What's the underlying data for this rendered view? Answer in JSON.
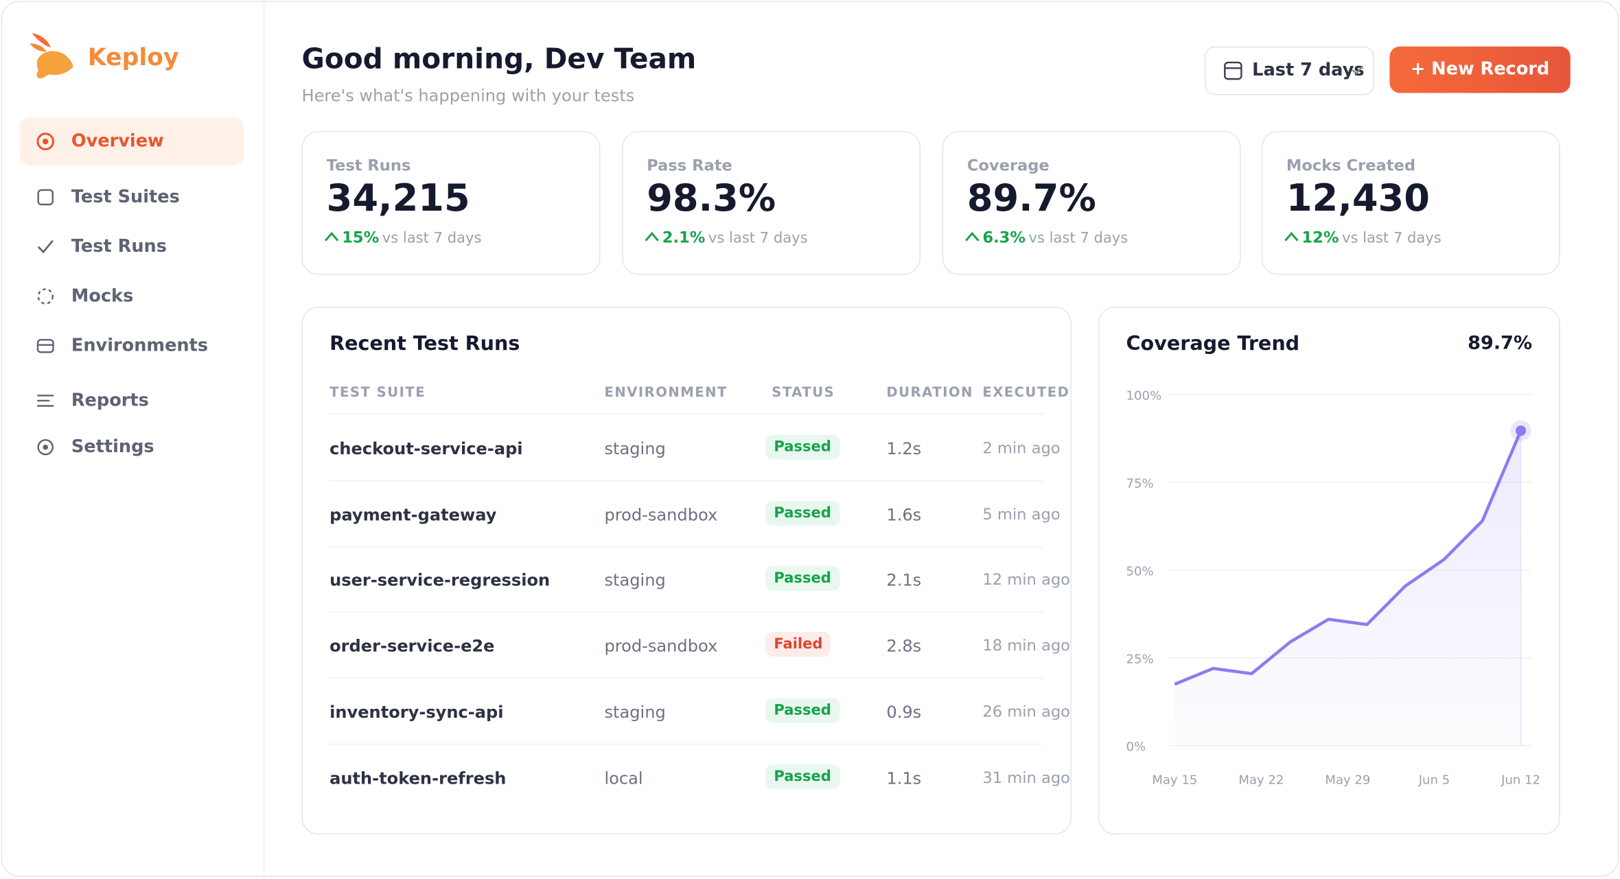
{
  "sidebar": {
    "brand": "Keploy",
    "nav": [
      "Overview",
      "Test Suites",
      "Test Runs",
      "Mocks",
      "Environments",
      "Reports",
      "Settings"
    ],
    "active": 0
  },
  "header": {
    "title": "Good morning, Dev Team",
    "subtitle": "Here's what's happening with your tests",
    "range": "Last 7 days",
    "button": "+ New Record"
  },
  "stats": [
    {
      "label": "Test Runs",
      "value": "34,215",
      "change": "15%",
      "note": "vs last 7 days"
    },
    {
      "label": "Pass Rate",
      "value": "98.3%",
      "change": "2.1%",
      "note": "vs last 7 days"
    },
    {
      "label": "Coverage",
      "value": "89.7%",
      "change": "6.3%",
      "note": "vs last 7 days"
    },
    {
      "label": "Mocks Created",
      "value": "12,430",
      "change": "12%",
      "note": "vs last 7 days"
    }
  ],
  "table": {
    "title": "Recent Test Runs",
    "columns": [
      "TEST SUITE",
      "ENVIRONMENT",
      "STATUS",
      "DURATION",
      "EXECUTED"
    ],
    "rows": [
      [
        "checkout-service-api",
        "staging",
        "Passed",
        "1.2s",
        "2 min ago"
      ],
      [
        "payment-gateway",
        "prod-sandbox",
        "Passed",
        "1.6s",
        "5 min ago"
      ],
      [
        "user-service-regression",
        "staging",
        "Passed",
        "2.1s",
        "12 min ago"
      ],
      [
        "order-service-e2e",
        "prod-sandbox",
        "Failed",
        "2.8s",
        "18 min ago"
      ],
      [
        "inventory-sync-api",
        "staging",
        "Passed",
        "0.9s",
        "26 min ago"
      ],
      [
        "auth-token-refresh",
        "local",
        "Passed",
        "1.1s",
        "31 min ago"
      ]
    ]
  },
  "chart_data": {
    "type": "line",
    "title": "Coverage Trend",
    "current": "89.7%",
    "values": [
      17.5,
      22,
      20.5,
      29.5,
      36,
      34.5,
      45.5,
      53,
      64,
      89.7
    ],
    "xlabels": [
      "May 15",
      "May 22",
      "May 29",
      "Jun 5",
      "Jun 12"
    ],
    "ylim": [
      0,
      100
    ],
    "yticks": [
      {
        "value": 0,
        "label": "0%"
      },
      {
        "value": 25,
        "label": "25%"
      },
      {
        "value": 50,
        "label": "50%"
      },
      {
        "value": 75,
        "label": "75%"
      },
      {
        "value": 100,
        "label": "100%"
      }
    ],
    "color": "#8b7cf0",
    "grid": true
  }
}
